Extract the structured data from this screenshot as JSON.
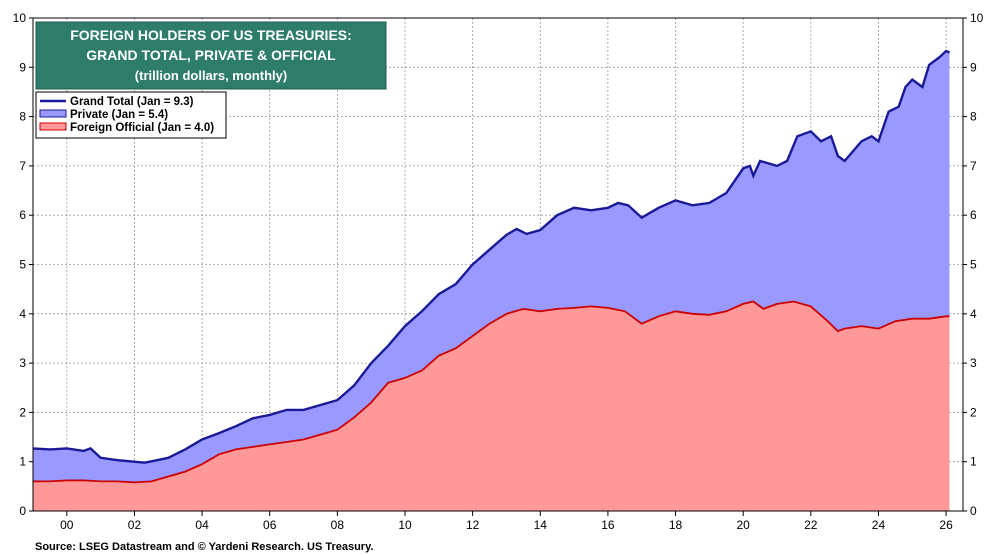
{
  "chart_data": {
    "type": "area",
    "title_lines": [
      "FOREIGN HOLDERS OF US TREASURIES:",
      "GRAND TOTAL, PRIVATE & OFFICIAL",
      "(trillion dollars, monthly)"
    ],
    "xlim": [
      1999,
      2026.5
    ],
    "ylim": [
      0,
      10
    ],
    "x_ticks": [
      2000,
      2002,
      2004,
      2006,
      2008,
      2010,
      2012,
      2014,
      2016,
      2018,
      2020,
      2022,
      2024,
      2026
    ],
    "x_tick_labels": [
      "00",
      "02",
      "04",
      "06",
      "08",
      "10",
      "12",
      "14",
      "16",
      "18",
      "20",
      "22",
      "24",
      "26"
    ],
    "y_ticks": [
      0,
      1,
      2,
      3,
      4,
      5,
      6,
      7,
      8,
      9,
      10
    ],
    "y_tick_labels": [
      "0",
      "1",
      "2",
      "3",
      "4",
      "5",
      "6",
      "7",
      "8",
      "9",
      "10"
    ],
    "legend": {
      "position": "top-left"
    },
    "colors": {
      "total": "#1a1a99",
      "private_fill": "#9999ff",
      "official_fill": "#ff9999",
      "official_line": "#cc0000",
      "title_bg": "#2e7d6b"
    },
    "series": [
      {
        "key": "total",
        "name": "Grand Total (Jan = 9.3)",
        "points": [
          [
            1999.0,
            1.27
          ],
          [
            1999.5,
            1.25
          ],
          [
            2000.0,
            1.27
          ],
          [
            2000.5,
            1.22
          ],
          [
            2000.7,
            1.27
          ],
          [
            2001.0,
            1.08
          ],
          [
            2001.5,
            1.03
          ],
          [
            2002.0,
            1.0
          ],
          [
            2002.3,
            0.98
          ],
          [
            2002.6,
            1.02
          ],
          [
            2003.0,
            1.08
          ],
          [
            2003.5,
            1.25
          ],
          [
            2004.0,
            1.45
          ],
          [
            2004.5,
            1.58
          ],
          [
            2005.0,
            1.72
          ],
          [
            2005.5,
            1.88
          ],
          [
            2006.0,
            1.95
          ],
          [
            2006.5,
            2.05
          ],
          [
            2007.0,
            2.05
          ],
          [
            2007.5,
            2.15
          ],
          [
            2008.0,
            2.25
          ],
          [
            2008.5,
            2.55
          ],
          [
            2009.0,
            3.0
          ],
          [
            2009.5,
            3.35
          ],
          [
            2010.0,
            3.75
          ],
          [
            2010.5,
            4.05
          ],
          [
            2011.0,
            4.4
          ],
          [
            2011.5,
            4.6
          ],
          [
            2012.0,
            5.0
          ],
          [
            2012.5,
            5.3
          ],
          [
            2013.0,
            5.6
          ],
          [
            2013.3,
            5.72
          ],
          [
            2013.6,
            5.62
          ],
          [
            2014.0,
            5.7
          ],
          [
            2014.5,
            6.0
          ],
          [
            2015.0,
            6.15
          ],
          [
            2015.5,
            6.1
          ],
          [
            2016.0,
            6.15
          ],
          [
            2016.3,
            6.25
          ],
          [
            2016.6,
            6.2
          ],
          [
            2017.0,
            5.95
          ],
          [
            2017.5,
            6.15
          ],
          [
            2018.0,
            6.3
          ],
          [
            2018.5,
            6.2
          ],
          [
            2019.0,
            6.25
          ],
          [
            2019.5,
            6.45
          ],
          [
            2020.0,
            6.95
          ],
          [
            2020.2,
            7.0
          ],
          [
            2020.3,
            6.8
          ],
          [
            2020.5,
            7.1
          ],
          [
            2021.0,
            7.0
          ],
          [
            2021.3,
            7.1
          ],
          [
            2021.6,
            7.6
          ],
          [
            2022.0,
            7.7
          ],
          [
            2022.3,
            7.5
          ],
          [
            2022.6,
            7.6
          ],
          [
            2022.8,
            7.2
          ],
          [
            2023.0,
            7.1
          ],
          [
            2023.5,
            7.5
          ],
          [
            2023.8,
            7.6
          ],
          [
            2024.0,
            7.5
          ],
          [
            2024.3,
            8.1
          ],
          [
            2024.6,
            8.2
          ],
          [
            2024.8,
            8.6
          ],
          [
            2025.0,
            8.75
          ],
          [
            2025.3,
            8.6
          ],
          [
            2025.5,
            9.05
          ],
          [
            2025.8,
            9.2
          ],
          [
            2026.0,
            9.33
          ],
          [
            2026.1,
            9.3
          ]
        ]
      },
      {
        "key": "private",
        "name": "Private (Jan = 5.4)",
        "points": []
      },
      {
        "key": "official",
        "name": "Foreign Official (Jan = 4.0)",
        "points": [
          [
            1999.0,
            0.6
          ],
          [
            1999.5,
            0.6
          ],
          [
            2000.0,
            0.62
          ],
          [
            2000.5,
            0.62
          ],
          [
            2001.0,
            0.6
          ],
          [
            2001.5,
            0.6
          ],
          [
            2002.0,
            0.58
          ],
          [
            2002.5,
            0.6
          ],
          [
            2003.0,
            0.7
          ],
          [
            2003.5,
            0.8
          ],
          [
            2004.0,
            0.95
          ],
          [
            2004.5,
            1.15
          ],
          [
            2005.0,
            1.25
          ],
          [
            2005.5,
            1.3
          ],
          [
            2006.0,
            1.35
          ],
          [
            2006.5,
            1.4
          ],
          [
            2007.0,
            1.45
          ],
          [
            2007.5,
            1.55
          ],
          [
            2008.0,
            1.65
          ],
          [
            2008.5,
            1.9
          ],
          [
            2009.0,
            2.2
          ],
          [
            2009.5,
            2.6
          ],
          [
            2010.0,
            2.7
          ],
          [
            2010.5,
            2.85
          ],
          [
            2011.0,
            3.15
          ],
          [
            2011.5,
            3.3
          ],
          [
            2012.0,
            3.55
          ],
          [
            2012.5,
            3.8
          ],
          [
            2013.0,
            4.0
          ],
          [
            2013.5,
            4.1
          ],
          [
            2014.0,
            4.05
          ],
          [
            2014.5,
            4.1
          ],
          [
            2015.0,
            4.12
          ],
          [
            2015.5,
            4.15
          ],
          [
            2016.0,
            4.12
          ],
          [
            2016.5,
            4.05
          ],
          [
            2017.0,
            3.8
          ],
          [
            2017.5,
            3.95
          ],
          [
            2018.0,
            4.05
          ],
          [
            2018.5,
            4.0
          ],
          [
            2019.0,
            3.98
          ],
          [
            2019.5,
            4.05
          ],
          [
            2020.0,
            4.2
          ],
          [
            2020.3,
            4.25
          ],
          [
            2020.6,
            4.1
          ],
          [
            2021.0,
            4.2
          ],
          [
            2021.5,
            4.25
          ],
          [
            2022.0,
            4.15
          ],
          [
            2022.5,
            3.85
          ],
          [
            2022.8,
            3.65
          ],
          [
            2023.0,
            3.7
          ],
          [
            2023.5,
            3.75
          ],
          [
            2024.0,
            3.7
          ],
          [
            2024.5,
            3.85
          ],
          [
            2025.0,
            3.9
          ],
          [
            2025.5,
            3.9
          ],
          [
            2026.0,
            3.95
          ],
          [
            2026.1,
            3.95
          ]
        ]
      }
    ]
  },
  "source": "Source: LSEG Datastream and © Yardeni Research. US Treasury."
}
